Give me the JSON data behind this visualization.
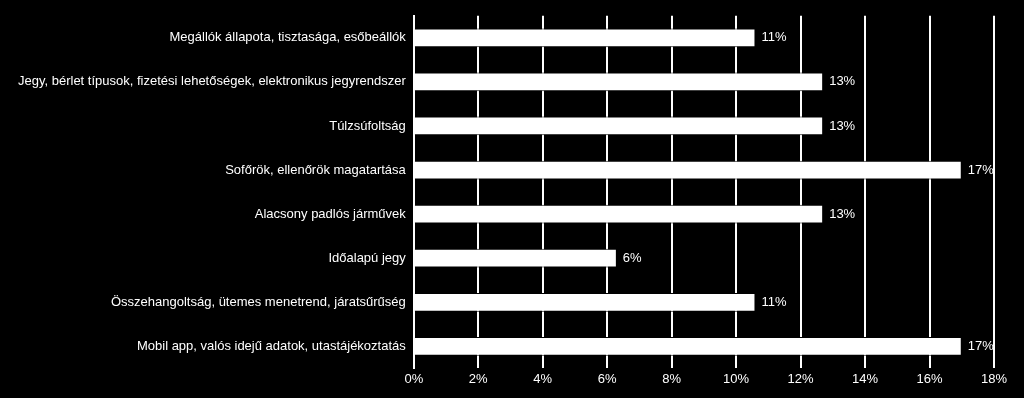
{
  "chart_data": {
    "type": "bar",
    "orientation": "horizontal",
    "categories": [
      "Megállók állapota, tisztasága, esőbeállók",
      "Jegy, bérlet típusok, fizetési lehetőségek, elektronikus jegyrendszer",
      "Túlzsúfoltság",
      "Sofőrök, ellenőrök magatartása",
      "Alacsony padlós járművek",
      "Időalapú jegy",
      "Összehangoltság, ütemes menetrend, járatsűrűség",
      "Mobil app, valós idejű adatok, utastájékoztatás"
    ],
    "values": [
      10.6,
      12.7,
      12.7,
      17.0,
      12.7,
      6.3,
      10.6,
      17.0
    ],
    "value_labels": [
      "11%",
      "13%",
      "13%",
      "17%",
      "13%",
      "6%",
      "11%",
      "17%"
    ],
    "color": "#ffffff",
    "xlim": [
      0,
      18
    ],
    "xticks": [
      {
        "value": 0,
        "label": "0%"
      },
      {
        "value": 2,
        "label": "2%"
      },
      {
        "value": 4,
        "label": "4%"
      },
      {
        "value": 6,
        "label": "6%"
      },
      {
        "value": 8,
        "label": "8%"
      },
      {
        "value": 10,
        "label": "10%"
      },
      {
        "value": 12,
        "label": "12%"
      },
      {
        "value": 14,
        "label": "14%"
      },
      {
        "value": 16,
        "label": "16%"
      },
      {
        "value": 18,
        "label": "18%"
      }
    ],
    "grid": "x",
    "legend": false
  }
}
